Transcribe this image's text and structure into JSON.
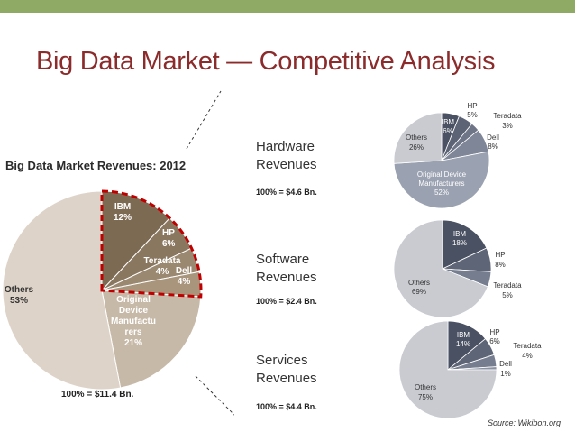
{
  "page": {
    "title": "Big Data Market — Competitive Analysis",
    "source": "Source: Wikibon.org"
  },
  "chart_data": [
    {
      "type": "pie",
      "title": "Big Data Market Revenues: 2012",
      "total_label": "100% = $11.4 Bn.",
      "labels": [
        "IBM",
        "HP",
        "Teradata",
        "Dell",
        "Original Device Manufacturers",
        "Others"
      ],
      "label_lines": [
        [
          "IBM",
          "12%"
        ],
        [
          "HP",
          "6%"
        ],
        [
          "Teradata",
          "4%"
        ],
        [
          "Dell",
          "4%"
        ],
        [
          "Original",
          "Device",
          "Manufactu",
          "rers",
          "21%"
        ],
        [
          "Others",
          "53%"
        ]
      ],
      "values": [
        12,
        6,
        4,
        4,
        21,
        53
      ],
      "colors": [
        "#7d6a52",
        "#8a7760",
        "#9a8870",
        "#a8957c",
        "#c7b9a8",
        "#ddd3c8"
      ],
      "highlight": [
        "IBM",
        "HP",
        "Teradata",
        "Dell"
      ],
      "highlight_color": "#c00000"
    },
    {
      "type": "pie",
      "segment": "Hardware Revenues",
      "segment_lines": [
        "Hardware",
        "Revenues"
      ],
      "total_label": "100% = $4.6 Bn.",
      "labels": [
        "IBM",
        "HP",
        "Teradata",
        "Dell",
        "Original Device Manufacturers",
        "Others"
      ],
      "label_lines": [
        [
          "IBM",
          "6%"
        ],
        [
          "HP",
          "5%"
        ],
        [
          "Teradata",
          "3%"
        ],
        [
          "Dell",
          "8%"
        ],
        [
          "Original Device",
          "Manufacturers",
          "52%"
        ],
        [
          "Others",
          "26%"
        ]
      ],
      "values": [
        6,
        5,
        3,
        8,
        52,
        26
      ],
      "colors": [
        "#4a5162",
        "#5c6374",
        "#6e7586",
        "#7f8697",
        "#9aa1b0",
        "#c9cbd1"
      ]
    },
    {
      "type": "pie",
      "segment": "Software Revenues",
      "segment_lines": [
        "Software",
        "Revenues"
      ],
      "total_label": "100% = $2.4 Bn.",
      "labels": [
        "IBM",
        "HP",
        "Teradata",
        "Others"
      ],
      "label_lines": [
        [
          "IBM",
          "18%"
        ],
        [
          "HP",
          "8%"
        ],
        [
          "Teradata",
          "5%"
        ],
        [
          "Others",
          "69%"
        ]
      ],
      "values": [
        18,
        8,
        5,
        69
      ],
      "colors": [
        "#4a5162",
        "#5e6576",
        "#767d8e",
        "#c9cbd1"
      ]
    },
    {
      "type": "pie",
      "segment": "Services Revenues",
      "segment_lines": [
        "Services",
        "Revenues"
      ],
      "total_label": "100% = $4.4 Bn.",
      "labels": [
        "IBM",
        "HP",
        "Teradata",
        "Dell",
        "Others"
      ],
      "label_lines": [
        [
          "IBM",
          "14%"
        ],
        [
          "HP",
          "6%"
        ],
        [
          "Teradata",
          "4%"
        ],
        [
          "Dell",
          "1%"
        ],
        [
          "Others",
          "75%"
        ]
      ],
      "values": [
        14,
        6,
        4,
        1,
        75
      ],
      "colors": [
        "#4a5162",
        "#5e6576",
        "#767d8e",
        "#8a91a1",
        "#c9cbd1"
      ]
    }
  ]
}
